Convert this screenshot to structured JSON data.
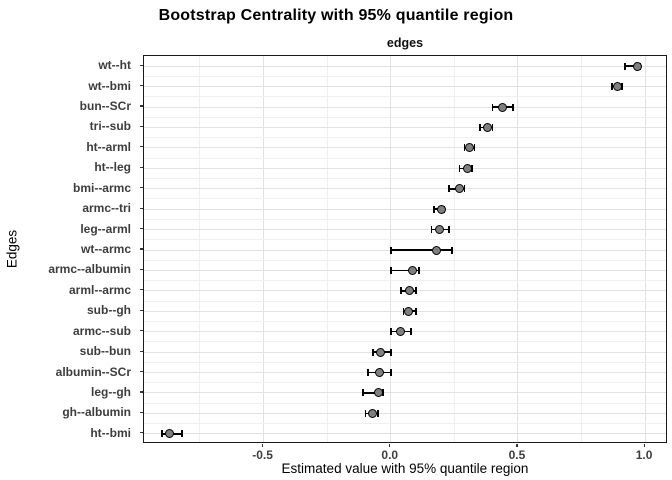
{
  "chart_data": {
    "type": "scatter",
    "title": "Bootstrap Centrality with 95% quantile region",
    "facet_label": "edges",
    "xlabel": "Estimated value with 95% quantile region",
    "ylabel": "Edges",
    "xlim": [
      -0.97,
      1.09
    ],
    "x_ticks": [
      {
        "value": -0.5,
        "label": "-0.5"
      },
      {
        "value": 0.0,
        "label": "0.0"
      },
      {
        "value": 0.5,
        "label": "0.5"
      },
      {
        "value": 1.0,
        "label": "1.0"
      }
    ],
    "x_minor_gridlines": [
      -0.75,
      -0.25,
      0.25,
      0.75
    ],
    "grid": true,
    "legend_position": "none",
    "colors": {
      "point_fill": "#7f7f7f",
      "point_border": "#000000",
      "errorbar": "#000000",
      "grid_major": "#e2e2e2",
      "grid_minor": "#efefef",
      "panel_border": "#1a1a1a",
      "axis_text": "#3d3d3d",
      "title_text": "#000000"
    },
    "series": [
      {
        "edge": "wt--ht",
        "estimate": 0.97,
        "lower": 0.92,
        "upper": 0.98
      },
      {
        "edge": "wt--bmi",
        "estimate": 0.89,
        "lower": 0.87,
        "upper": 0.91
      },
      {
        "edge": "bun--SCr",
        "estimate": 0.44,
        "lower": 0.4,
        "upper": 0.48
      },
      {
        "edge": "tri--sub",
        "estimate": 0.38,
        "lower": 0.35,
        "upper": 0.4
      },
      {
        "edge": "ht--arml",
        "estimate": 0.31,
        "lower": 0.29,
        "upper": 0.33
      },
      {
        "edge": "ht--leg",
        "estimate": 0.3,
        "lower": 0.27,
        "upper": 0.32
      },
      {
        "edge": "bmi--armc",
        "estimate": 0.27,
        "lower": 0.23,
        "upper": 0.29
      },
      {
        "edge": "armc--tri",
        "estimate": 0.2,
        "lower": 0.17,
        "upper": 0.21
      },
      {
        "edge": "leg--arml",
        "estimate": 0.19,
        "lower": 0.16,
        "upper": 0.23
      },
      {
        "edge": "wt--armc",
        "estimate": 0.18,
        "lower": 0.0,
        "upper": 0.24
      },
      {
        "edge": "armc--albumin",
        "estimate": 0.085,
        "lower": 0.0,
        "upper": 0.11
      },
      {
        "edge": "arml--armc",
        "estimate": 0.075,
        "lower": 0.04,
        "upper": 0.1
      },
      {
        "edge": "sub--gh",
        "estimate": 0.07,
        "lower": 0.05,
        "upper": 0.1
      },
      {
        "edge": "armc--sub",
        "estimate": 0.04,
        "lower": 0.0,
        "upper": 0.08
      },
      {
        "edge": "sub--bun",
        "estimate": -0.04,
        "lower": -0.07,
        "upper": 0.0
      },
      {
        "edge": "albumin--SCr",
        "estimate": -0.045,
        "lower": -0.09,
        "upper": 0.0
      },
      {
        "edge": "leg--gh",
        "estimate": -0.05,
        "lower": -0.11,
        "upper": -0.03
      },
      {
        "edge": "gh--albumin",
        "estimate": -0.07,
        "lower": -0.1,
        "upper": -0.05
      },
      {
        "edge": "ht--bmi",
        "estimate": -0.87,
        "lower": -0.9,
        "upper": -0.82
      }
    ]
  }
}
